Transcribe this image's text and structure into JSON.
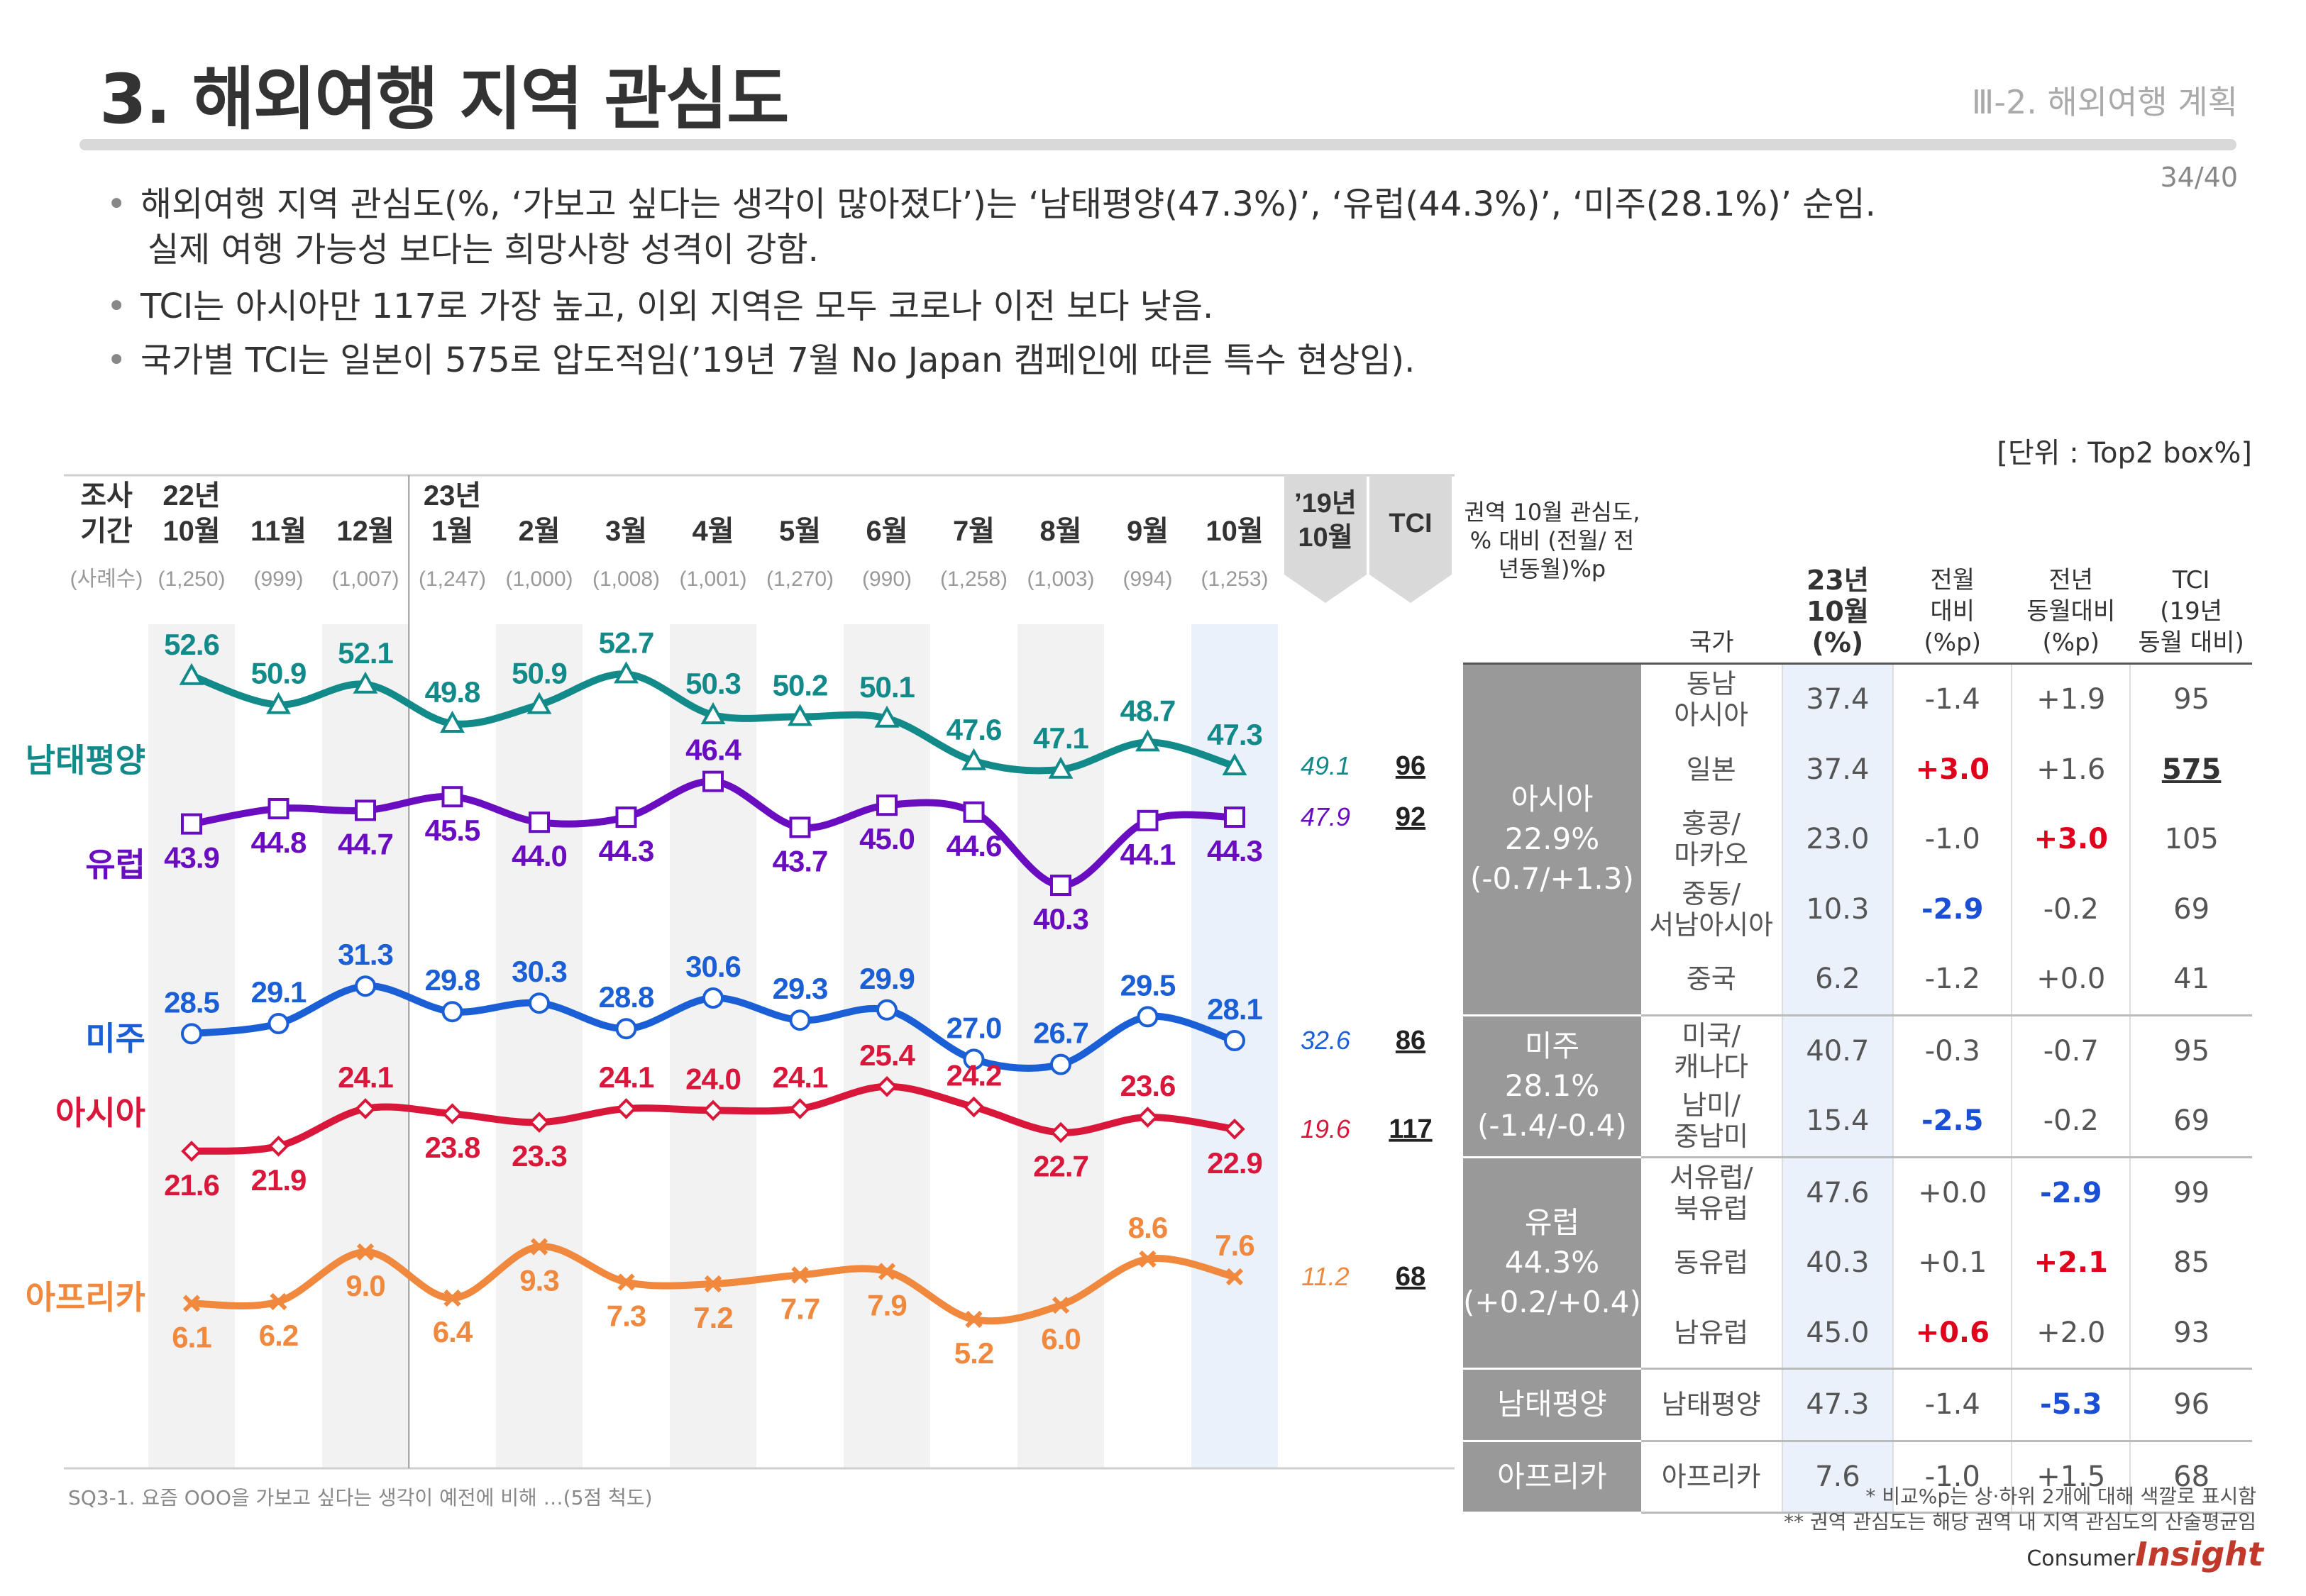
{
  "header": {
    "title": "3. 해외여행 지역 관심도",
    "section": "Ⅲ-2. 해외여행 계획",
    "page": "34/40"
  },
  "bullets": [
    [
      "해외여행 지역 관심도(%, ‘가보고 싶다는 생각이 많아졌다’)는 ‘남태평양(47.3%)’, ‘유럽(44.3%)’, ‘미주(28.1%)’ 순임.",
      "실제 여행 가능성 보다는 희망사항 성격이 강함."
    ],
    [
      "TCI는 아시아만 117로 가장 높고, 이외 지역은 모두 코로나 이전 보다 낮음."
    ],
    [
      "국가별 TCI는 일본이 575로 압도적임(’19년 7월 No Japan 캠페인에 따른 특수 현상임)."
    ]
  ],
  "unit_label": "[단위 : Top2 box%]",
  "chart_data": {
    "type": "line",
    "period_label": [
      "조사",
      "기간"
    ],
    "sample_label": "(사례수)",
    "categories": [
      {
        "year": "22년",
        "month": "10월",
        "n": "(1,250)"
      },
      {
        "year": "",
        "month": "11월",
        "n": "(999)"
      },
      {
        "year": "",
        "month": "12월",
        "n": "(1,007)"
      },
      {
        "year": "23년",
        "month": "1월",
        "n": "(1,247)"
      },
      {
        "year": "",
        "month": "2월",
        "n": "(1,000)"
      },
      {
        "year": "",
        "month": "3월",
        "n": "(1,008)"
      },
      {
        "year": "",
        "month": "4월",
        "n": "(1,001)"
      },
      {
        "year": "",
        "month": "5월",
        "n": "(1,270)"
      },
      {
        "year": "",
        "month": "6월",
        "n": "(990)"
      },
      {
        "year": "",
        "month": "7월",
        "n": "(1,258)"
      },
      {
        "year": "",
        "month": "8월",
        "n": "(1,003)"
      },
      {
        "year": "",
        "month": "9월",
        "n": "(994)"
      },
      {
        "year": "",
        "month": "10월",
        "n": "(1,253)"
      }
    ],
    "ref_header": [
      "’19년",
      "10월"
    ],
    "tci_header": "TCI",
    "series": [
      {
        "name": "남태평양",
        "color": "#138a8a",
        "marker": "triangle",
        "values": [
          52.6,
          50.9,
          52.1,
          49.8,
          50.9,
          52.7,
          50.3,
          50.2,
          50.1,
          47.6,
          47.1,
          48.7,
          47.3
        ],
        "ref": "49.1",
        "tci": "96"
      },
      {
        "name": "유럽",
        "color": "#6a0dc0",
        "marker": "square",
        "values": [
          43.9,
          44.8,
          44.7,
          45.5,
          44.0,
          44.3,
          46.4,
          43.7,
          45.0,
          44.6,
          40.3,
          44.1,
          44.3
        ],
        "ref": "47.9",
        "tci": "92"
      },
      {
        "name": "미주",
        "color": "#1a5fd6",
        "marker": "circle",
        "values": [
          28.5,
          29.1,
          31.3,
          29.8,
          30.3,
          28.8,
          30.6,
          29.3,
          29.9,
          27.0,
          26.7,
          29.5,
          28.1
        ],
        "ref": "32.6",
        "tci": "86"
      },
      {
        "name": "아시아",
        "color": "#d9173a",
        "marker": "diamond",
        "values": [
          21.6,
          21.9,
          24.1,
          23.8,
          23.3,
          24.1,
          24.0,
          24.1,
          25.4,
          24.2,
          22.7,
          23.6,
          22.9
        ],
        "ref": "19.6",
        "tci": "117"
      },
      {
        "name": "아프리카",
        "color": "#f0883e",
        "marker": "x",
        "values": [
          6.1,
          6.2,
          9.0,
          6.4,
          9.3,
          7.3,
          7.2,
          7.7,
          7.9,
          5.2,
          6.0,
          8.6,
          7.6
        ],
        "ref": "11.2",
        "tci": "68"
      }
    ]
  },
  "region_table": {
    "headers": {
      "region": "권역 10월 관심도, % 대비 (전월/ 전년동월)%p",
      "country": "국가",
      "current": [
        "23년",
        "10월",
        "(%)"
      ],
      "mom": [
        "전월",
        "대비",
        "(%p)"
      ],
      "yoy": [
        "전년",
        "동월대비",
        "(%p)"
      ],
      "tci": [
        "TCI",
        "(19년",
        "동월 대비)"
      ]
    },
    "groups": [
      {
        "region": [
          "아시아",
          "22.9%",
          "(-0.7/+1.3)"
        ],
        "rows": [
          {
            "country": "동남 아시아",
            "value": "37.4",
            "mom": "-1.4",
            "yoy": "+1.9",
            "tci": "95",
            "mom_hl": "",
            "yoy_hl": "",
            "tci_hl": false
          },
          {
            "country": "일본",
            "value": "37.4",
            "mom": "+3.0",
            "yoy": "+1.6",
            "tci": "575",
            "mom_hl": "red",
            "yoy_hl": "",
            "tci_hl": true
          },
          {
            "country": "홍콩/ 마카오",
            "value": "23.0",
            "mom": "-1.0",
            "yoy": "+3.0",
            "tci": "105",
            "mom_hl": "",
            "yoy_hl": "red",
            "tci_hl": false
          },
          {
            "country": "중동/ 서남아시아",
            "value": "10.3",
            "mom": "-2.9",
            "yoy": "-0.2",
            "tci": "69",
            "mom_hl": "blue",
            "yoy_hl": "",
            "tci_hl": false
          },
          {
            "country": "중국",
            "value": "6.2",
            "mom": "-1.2",
            "yoy": "+0.0",
            "tci": "41",
            "mom_hl": "",
            "yoy_hl": "",
            "tci_hl": false
          }
        ]
      },
      {
        "region": [
          "미주",
          "28.1%",
          "(-1.4/-0.4)"
        ],
        "rows": [
          {
            "country": "미국/ 캐나다",
            "value": "40.7",
            "mom": "-0.3",
            "yoy": "-0.7",
            "tci": "95",
            "mom_hl": "",
            "yoy_hl": "",
            "tci_hl": false
          },
          {
            "country": "남미/ 중남미",
            "value": "15.4",
            "mom": "-2.5",
            "yoy": "-0.2",
            "tci": "69",
            "mom_hl": "blue",
            "yoy_hl": "",
            "tci_hl": false
          }
        ]
      },
      {
        "region": [
          "유럽",
          "44.3%",
          "(+0.2/+0.4)"
        ],
        "rows": [
          {
            "country": "서유럽/ 북유럽",
            "value": "47.6",
            "mom": "+0.0",
            "yoy": "-2.9",
            "tci": "99",
            "mom_hl": "",
            "yoy_hl": "blue",
            "tci_hl": false
          },
          {
            "country": "동유럽",
            "value": "40.3",
            "mom": "+0.1",
            "yoy": "+2.1",
            "tci": "85",
            "mom_hl": "",
            "yoy_hl": "red",
            "tci_hl": false
          },
          {
            "country": "남유럽",
            "value": "45.0",
            "mom": "+0.6",
            "yoy": "+2.0",
            "tci": "93",
            "mom_hl": "red",
            "yoy_hl": "",
            "tci_hl": false
          }
        ]
      },
      {
        "region": [
          "남태평양"
        ],
        "rows": [
          {
            "country": "남태평양",
            "value": "47.3",
            "mom": "-1.4",
            "yoy": "-5.3",
            "tci": "96",
            "mom_hl": "",
            "yoy_hl": "blue",
            "tci_hl": false
          }
        ]
      },
      {
        "region": [
          "아프리카"
        ],
        "rows": [
          {
            "country": "아프리카",
            "value": "7.6",
            "mom": "-1.0",
            "yoy": "+1.5",
            "tci": "68",
            "mom_hl": "",
            "yoy_hl": "",
            "tci_hl": false
          }
        ]
      }
    ]
  },
  "footnote": "SQ3-1. 요즘 OOO을 가보고 싶다는 생각이 예전에 비해 …(5점 척도)",
  "notes": [
    "* 비교%p는 상·하위 2개에 대해 색깔로 표시함",
    "** 권역 관심도는 해당 권역 내 지역 관심도의 산술평균임"
  ],
  "logo": {
    "small": "Consumer",
    "big": "Insight"
  },
  "colors": {
    "highlight_red": "#e0001b",
    "highlight_blue": "#1a4fd6",
    "region_bg": "#999999",
    "current_col_bg": "#eaf1fb"
  }
}
